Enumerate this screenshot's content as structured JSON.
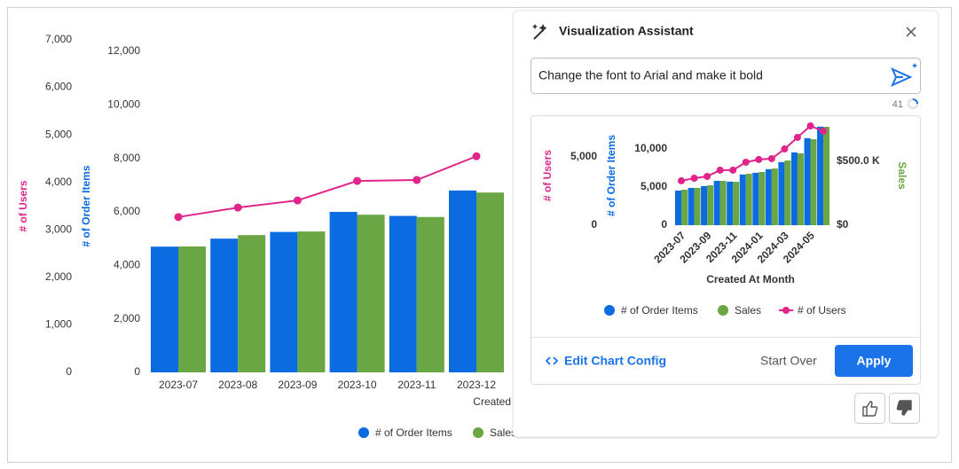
{
  "chart_data": [
    {
      "type": "bar",
      "categories": [
        "2023-07",
        "2023-08",
        "2023-09",
        "2023-10",
        "2023-11",
        "2023-12"
      ],
      "series": [
        {
          "name": "# of Order Items",
          "type": "bar",
          "axis": "y",
          "color": "#0b6be0",
          "values": [
            4700,
            5000,
            5250,
            6000,
            5850,
            6800
          ]
        },
        {
          "name": "Sales",
          "type": "bar",
          "axis": "y2",
          "color": "#6aa744",
          "values": [
            278000,
            303000,
            311000,
            348000,
            343000,
            397000
          ]
        },
        {
          "name": "# of Users",
          "type": "line",
          "axis": "y3",
          "color": "#e0248a",
          "values": [
            3270,
            3470,
            3620,
            4030,
            4050,
            4550
          ]
        }
      ],
      "ylabel": "# of Order Items",
      "y3label": "# of Users",
      "xlabel": "Created At Month",
      "ylim": [
        0,
        12430
      ],
      "yticks": [
        0,
        {
          "value": 2000,
          "label": "2,000"
        },
        {
          "value": 4000,
          "label": "4,000"
        },
        {
          "value": 6000,
          "label": "6,000"
        },
        {
          "value": 8000,
          "label": "8,000"
        },
        {
          "value": 10000,
          "label": "10,000"
        },
        {
          "value": 12000,
          "label": "12,000"
        }
      ],
      "y2lim": [
        0,
        734000
      ],
      "y3lim": [
        0,
        7000
      ],
      "y3ticks": [
        0,
        {
          "value": 1000,
          "label": "1,000"
        },
        {
          "value": 2000,
          "label": "2,000"
        },
        {
          "value": 3000,
          "label": "3,000"
        },
        {
          "value": 4000,
          "label": "4,000"
        },
        {
          "value": 5000,
          "label": "5,000"
        },
        {
          "value": 6000,
          "label": "6,000"
        },
        {
          "value": 7000,
          "label": "7,000"
        }
      ],
      "grid": false,
      "legend": "bottom"
    },
    {
      "type": "bar",
      "categories": [
        "2023-07",
        null,
        "2023-09",
        null,
        "2023-11",
        null,
        "2024-01",
        null,
        "2024-03",
        null,
        "2024-05",
        null
      ],
      "series": [
        {
          "name": "# of Order Items",
          "type": "bar",
          "axis": "y",
          "color": "#0b6be0",
          "values": [
            4530,
            4880,
            5120,
            5810,
            5700,
            6630,
            6860,
            7330,
            8260,
            9530,
            11400,
            12900
          ]
        },
        {
          "name": "Sales",
          "type": "bar",
          "axis": "y2",
          "color": "#6aa744",
          "values": [
            278000,
            292000,
            313000,
            347000,
            340000,
            403000,
            417000,
            444000,
            507000,
            563000,
            674000,
            771000
          ]
        },
        {
          "name": "# of Users",
          "type": "line",
          "axis": "y3",
          "color": "#e0248a",
          "values": [
            3250,
            3440,
            3570,
            4030,
            4030,
            4610,
            4810,
            4870,
            5580,
            6430,
            7270,
            6880
          ]
        }
      ],
      "ylabel": "# of Order Items",
      "y2label": "Sales",
      "y3label": "# of Users",
      "xlabel": "Created At Month",
      "ylim": [
        0,
        13000
      ],
      "yticks": [
        0,
        {
          "value": 5000,
          "label": "5,000"
        },
        {
          "value": 10000,
          "label": "10,000"
        }
      ],
      "y2lim": [
        0,
        778000
      ],
      "y2ticks": [
        {
          "value": 0,
          "label": "$0"
        },
        {
          "value": 500000,
          "label": "$500.0 K"
        }
      ],
      "y3lim": [
        0,
        7270
      ],
      "y3ticks": [
        0,
        {
          "value": 5000,
          "label": "5,000"
        }
      ],
      "grid": false,
      "legend": "bottom"
    }
  ],
  "assistant": {
    "title": "Visualization Assistant",
    "prompt": "Change the font to Arial and make it bold",
    "char_count": 41,
    "edit_config": "Edit Chart Config",
    "start_over": "Start Over",
    "apply": "Apply"
  }
}
